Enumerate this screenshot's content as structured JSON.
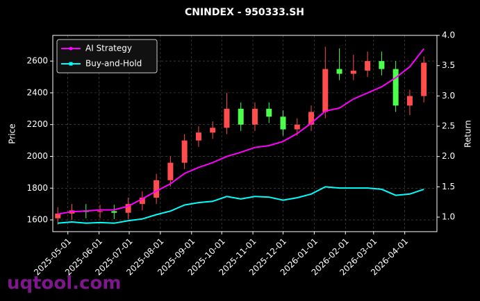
{
  "chart_data": {
    "type": "candlestick",
    "title": "CNINDEX - 950333.SH",
    "ylabel": "Price",
    "y2label": "Return",
    "watermark": "uqtool.com",
    "x": [
      "2025-04-21",
      "2025-05-05",
      "2025-05-19",
      "2025-06-02",
      "2025-06-16",
      "2025-06-30",
      "2025-07-14",
      "2025-07-28",
      "2025-08-11",
      "2025-08-25",
      "2025-09-08",
      "2025-09-22",
      "2025-10-06",
      "2025-10-20",
      "2025-11-03",
      "2025-11-17",
      "2025-12-01",
      "2025-12-15",
      "2025-12-29",
      "2026-01-12",
      "2026-01-26",
      "2026-02-09",
      "2026-02-23",
      "2026-03-09",
      "2026-03-23",
      "2026-04-06",
      "2026-04-20"
    ],
    "open": [
      1610,
      1640,
      1660,
      1650,
      1655,
      1645,
      1700,
      1740,
      1850,
      1960,
      2100,
      2150,
      2180,
      2300,
      2200,
      2300,
      2250,
      2170,
      2200,
      2280,
      2550,
      2520,
      2540,
      2600,
      2550,
      2320,
      2380
    ],
    "high": [
      1680,
      1700,
      1700,
      1695,
      1695,
      1740,
      1780,
      1890,
      2000,
      2140,
      2190,
      2220,
      2400,
      2340,
      2340,
      2340,
      2290,
      2240,
      2320,
      2690,
      2680,
      2640,
      2660,
      2660,
      2600,
      2420,
      2630
    ],
    "low": [
      1570,
      1600,
      1610,
      1610,
      1605,
      1605,
      1660,
      1700,
      1810,
      1920,
      2060,
      2110,
      2140,
      2160,
      2160,
      2210,
      2130,
      2130,
      2160,
      2240,
      2480,
      2480,
      2500,
      2510,
      2280,
      2260,
      2340
    ],
    "close": [
      1640,
      1660,
      1650,
      1655,
      1645,
      1700,
      1740,
      1850,
      1960,
      2100,
      2150,
      2180,
      2300,
      2200,
      2300,
      2250,
      2170,
      2200,
      2280,
      2550,
      2520,
      2540,
      2600,
      2550,
      2320,
      2380,
      2590
    ],
    "up_color": "#ff4d4d",
    "down_color": "#4dff4d",
    "series": [
      {
        "name": "AI Strategy",
        "color": "#ff00ff",
        "axis": "y2",
        "values": [
          1.05,
          1.09,
          1.1,
          1.12,
          1.12,
          1.18,
          1.3,
          1.43,
          1.55,
          1.72,
          1.82,
          1.9,
          2.0,
          2.07,
          2.15,
          2.18,
          2.25,
          2.38,
          2.55,
          2.75,
          2.8,
          2.95,
          3.05,
          3.15,
          3.3,
          3.48,
          3.78
        ]
      },
      {
        "name": "Buy-and-Hold",
        "color": "#00ffff",
        "axis": "y2",
        "values": [
          0.9,
          0.92,
          0.9,
          0.91,
          0.9,
          0.94,
          0.97,
          1.04,
          1.1,
          1.2,
          1.24,
          1.26,
          1.34,
          1.3,
          1.34,
          1.33,
          1.28,
          1.32,
          1.38,
          1.5,
          1.48,
          1.48,
          1.48,
          1.46,
          1.36,
          1.38,
          1.46
        ]
      }
    ],
    "xlim": [
      "2025-04-16",
      "2026-05-03"
    ],
    "xticks": [
      "2025-05-01",
      "2025-06-01",
      "2025-07-01",
      "2025-08-01",
      "2025-09-01",
      "2025-10-01",
      "2025-11-01",
      "2025-12-01",
      "2026-01-01",
      "2026-02-01",
      "2026-03-01",
      "2026-04-01"
    ],
    "ylim": [
      1526,
      2762
    ],
    "yticks": [
      1600,
      1800,
      2000,
      2200,
      2400,
      2600
    ],
    "y2lim": [
      0.76,
      4.0
    ],
    "y2ticks": [
      {
        "value": 1.0,
        "label": "1.0"
      },
      1.5,
      {
        "value": 2.0,
        "label": "2.0"
      },
      2.5,
      {
        "value": 3.0,
        "label": "3.0"
      },
      3.5,
      {
        "value": 4.0,
        "label": "4.0"
      }
    ],
    "grid": true,
    "legend": "upper left"
  }
}
